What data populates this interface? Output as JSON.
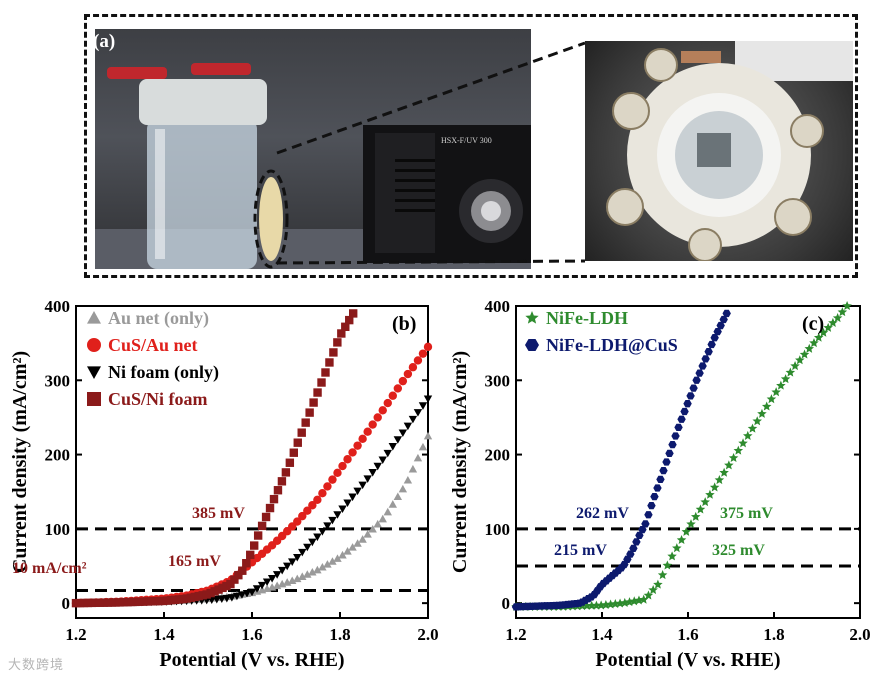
{
  "figure": {
    "panel_a_label": "(a)",
    "instrument_text": "HSX-F/UV 300",
    "watermark": "大数跨境"
  },
  "chart_data": [
    {
      "type": "scatter",
      "panel_label": "(b)",
      "xlabel": "Potential (V vs. RHE)",
      "ylabel": "Current density (mA/cm²)",
      "xlim": [
        1.2,
        2.0
      ],
      "ylim": [
        -20,
        400
      ],
      "xticks": [
        "1.2",
        "1.4",
        "1.6",
        "1.8",
        "2.0"
      ],
      "yticks": [
        "0",
        "100",
        "200",
        "300",
        "400"
      ],
      "legend_position": "top-left",
      "series": [
        {
          "name": "Au net (only)",
          "color": "#9a9a9a",
          "marker": "triangle-up",
          "x": [
            1.2,
            1.3,
            1.4,
            1.5,
            1.55,
            1.6,
            1.65,
            1.7,
            1.75,
            1.8,
            1.85,
            1.9,
            1.95,
            2.0
          ],
          "y": [
            0,
            1,
            2,
            6,
            9,
            14,
            22,
            32,
            45,
            62,
            85,
            115,
            160,
            225
          ]
        },
        {
          "name": "CuS/Au net",
          "color": "#e0201b",
          "marker": "circle",
          "x": [
            1.2,
            1.3,
            1.4,
            1.45,
            1.5,
            1.55,
            1.6,
            1.65,
            1.7,
            1.75,
            1.8,
            1.85,
            1.9,
            1.95,
            2.0
          ],
          "y": [
            0,
            2,
            6,
            10,
            17,
            30,
            55,
            80,
            108,
            140,
            180,
            220,
            262,
            305,
            345
          ]
        },
        {
          "name": "Ni foam (only)",
          "color": "#000000",
          "marker": "triangle-down",
          "x": [
            1.2,
            1.3,
            1.4,
            1.5,
            1.55,
            1.6,
            1.65,
            1.7,
            1.75,
            1.8,
            1.85,
            1.9,
            1.95,
            2.0
          ],
          "y": [
            0,
            1,
            2,
            4,
            7,
            15,
            35,
            60,
            90,
            123,
            158,
            195,
            235,
            275
          ]
        },
        {
          "name": "CuS/Ni foam",
          "color": "#8b1a1a",
          "marker": "square",
          "x": [
            1.2,
            1.3,
            1.4,
            1.45,
            1.5,
            1.55,
            1.58,
            1.6,
            1.62,
            1.65,
            1.68,
            1.7,
            1.72,
            1.75,
            1.78,
            1.8,
            1.83
          ],
          "y": [
            0,
            1,
            3,
            6,
            12,
            25,
            45,
            70,
            100,
            140,
            180,
            210,
            240,
            285,
            330,
            360,
            390
          ]
        }
      ],
      "annotations": [
        {
          "text": "385 mV",
          "color": "#8b1a1a"
        },
        {
          "text": "10 mA/cm²",
          "color": "#8b1a1a"
        },
        {
          "text": "165 mV",
          "color": "#8b1a1a"
        }
      ],
      "reference_lines": [
        100,
        17
      ]
    },
    {
      "type": "scatter",
      "panel_label": "(c)",
      "xlabel": "Potential (V vs. RHE)",
      "ylabel": "Current density (mA/cm²)",
      "xlim": [
        1.2,
        2.0
      ],
      "ylim": [
        -20,
        400
      ],
      "xticks": [
        "1.2",
        "1.4",
        "1.6",
        "1.8",
        "2.0"
      ],
      "yticks": [
        "0",
        "100",
        "200",
        "300",
        "400"
      ],
      "legend_position": "top-left",
      "series": [
        {
          "name": "NiFe-LDH",
          "color": "#2e8b2e",
          "marker": "star",
          "x": [
            1.2,
            1.3,
            1.4,
            1.45,
            1.5,
            1.53,
            1.56,
            1.6,
            1.65,
            1.7,
            1.75,
            1.8,
            1.85,
            1.9,
            1.95,
            1.97
          ],
          "y": [
            -5,
            -5,
            -3,
            0,
            5,
            25,
            60,
            100,
            145,
            190,
            235,
            280,
            320,
            355,
            385,
            400
          ]
        },
        {
          "name": "NiFe-LDH@CuS",
          "color": "#0d1a6e",
          "marker": "hexagon",
          "x": [
            1.2,
            1.3,
            1.35,
            1.38,
            1.4,
            1.43,
            1.45,
            1.47,
            1.49,
            1.5,
            1.52,
            1.55,
            1.58,
            1.62,
            1.66,
            1.69
          ],
          "y": [
            -5,
            -3,
            0,
            10,
            25,
            40,
            50,
            70,
            95,
            105,
            140,
            190,
            240,
            300,
            355,
            390
          ]
        }
      ],
      "annotations": [
        {
          "text": "262 mV",
          "color": "#0d1a6e"
        },
        {
          "text": "375 mV",
          "color": "#2e8b2e"
        },
        {
          "text": "215 mV",
          "color": "#0d1a6e"
        },
        {
          "text": "325 mV",
          "color": "#2e8b2e"
        }
      ],
      "reference_lines": [
        100,
        50
      ]
    }
  ]
}
